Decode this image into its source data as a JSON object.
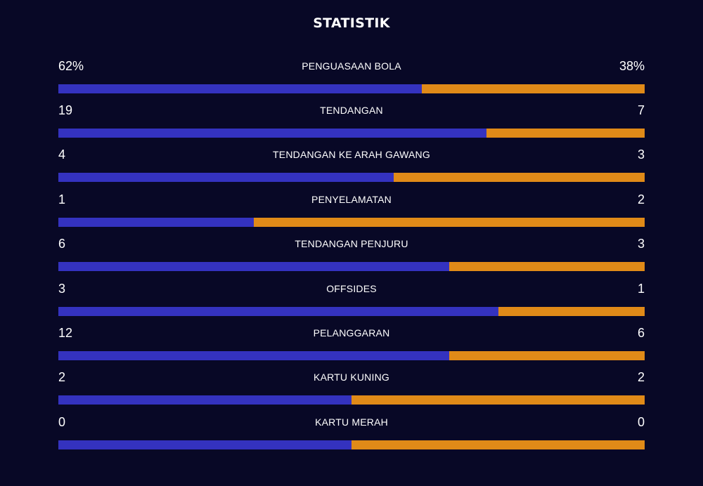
{
  "title": "STATISTIK",
  "colors": {
    "background": "#080826",
    "home_bar": "#3432bf",
    "away_bar": "#e08a18",
    "text": "#ffffff"
  },
  "stats": [
    {
      "label": "PENGUASAAN BOLA",
      "home": "62%",
      "away": "38%",
      "home_share": 0.62
    },
    {
      "label": "TENDANGAN",
      "home": "19",
      "away": "7",
      "home_share": 0.7308
    },
    {
      "label": "TENDANGAN KE ARAH GAWANG",
      "home": "4",
      "away": "3",
      "home_share": 0.5714
    },
    {
      "label": "PENYELAMATAN",
      "home": "1",
      "away": "2",
      "home_share": 0.3333
    },
    {
      "label": "TENDANGAN PENJURU",
      "home": "6",
      "away": "3",
      "home_share": 0.6667
    },
    {
      "label": "OFFSIDES",
      "home": "3",
      "away": "1",
      "home_share": 0.75
    },
    {
      "label": "PELANGGARAN",
      "home": "12",
      "away": "6",
      "home_share": 0.6667
    },
    {
      "label": "KARTU KUNING",
      "home": "2",
      "away": "2",
      "home_share": 0.5
    },
    {
      "label": "KARTU MERAH",
      "home": "0",
      "away": "0",
      "home_share": 0.5
    }
  ]
}
